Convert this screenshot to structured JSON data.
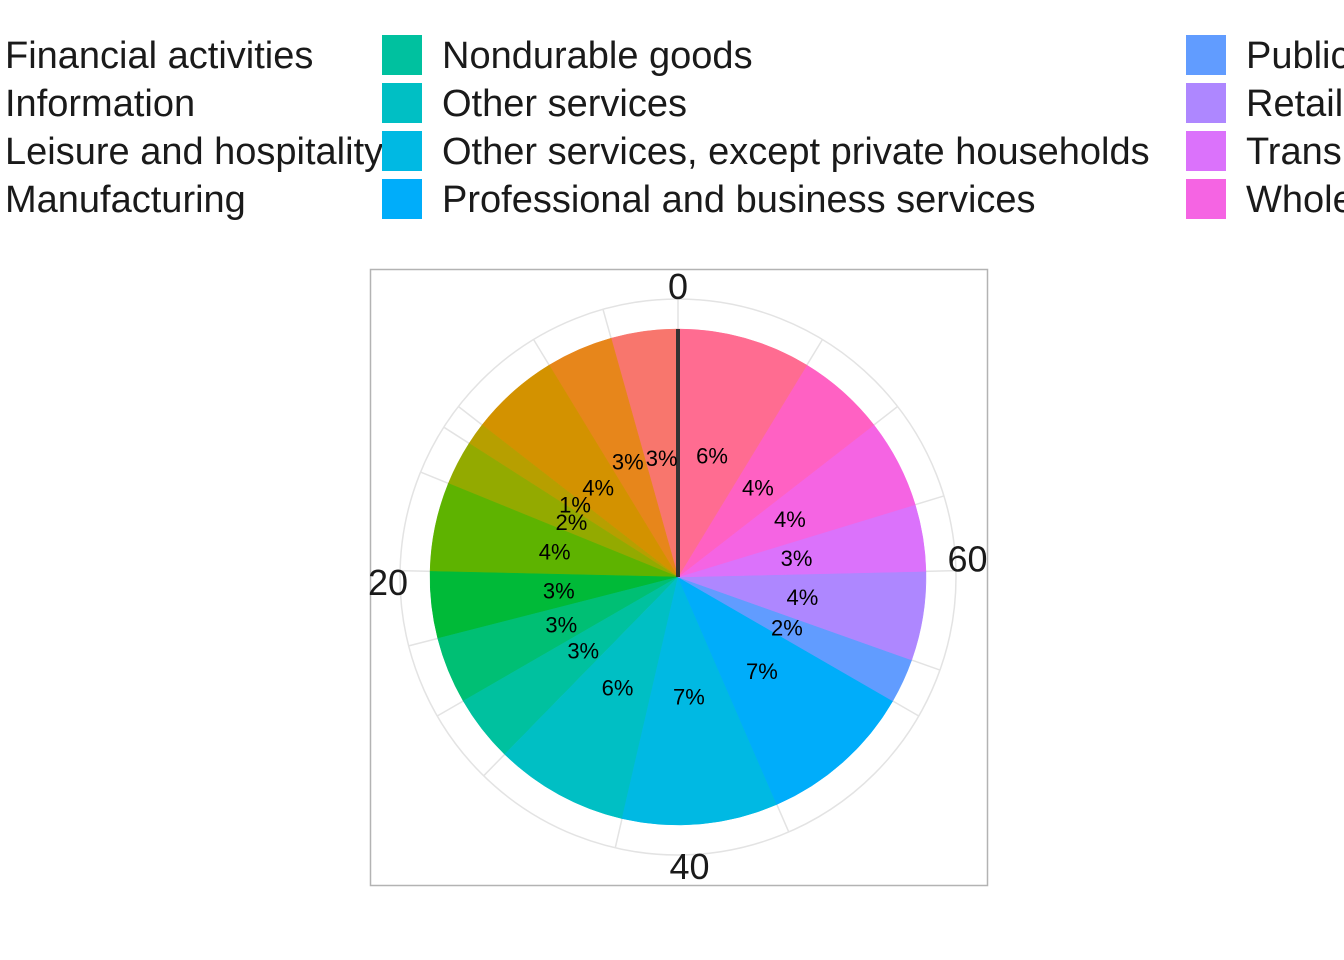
{
  "chart_data": {
    "type": "pie",
    "coord": "polar",
    "theta_axis_ticks": [
      "0",
      "20",
      "40",
      "60"
    ],
    "theta_axis_max": 79,
    "grid": true,
    "legend_position": "top",
    "slices": [
      {
        "name": "",
        "value": 3,
        "label": "3%",
        "color": "#F8766D"
      },
      {
        "name": "",
        "value": 3,
        "label": "3%",
        "color": "#E7861B"
      },
      {
        "name": "",
        "value": 4,
        "label": "4%",
        "color": "#D39200"
      },
      {
        "name": "",
        "value": 1,
        "label": "1%",
        "color": "#B79F00"
      },
      {
        "name": "",
        "value": 2,
        "label": "2%",
        "color": "#93AA00"
      },
      {
        "name": "",
        "value": 4,
        "label": "4%",
        "color": "#5EB300"
      },
      {
        "name": "",
        "value": 3,
        "label": "3%",
        "color": "#00BA38"
      },
      {
        "name": "",
        "value": 3,
        "label": "3%",
        "color": "#00BF74"
      },
      {
        "name": "",
        "value": 3,
        "label": "3%",
        "color": "#00C19F"
      },
      {
        "name": "",
        "value": 6,
        "label": "6%",
        "color": "#00BFC4"
      },
      {
        "name": "",
        "value": 7,
        "label": "7%",
        "color": "#00B9E3"
      },
      {
        "name": "",
        "value": 7,
        "label": "7%",
        "color": "#00ADFA"
      },
      {
        "name": "",
        "value": 2,
        "label": "2%",
        "color": "#619CFF"
      },
      {
        "name": "",
        "value": 4,
        "label": "4%",
        "color": "#AE87FF"
      },
      {
        "name": "",
        "value": 3,
        "label": "3%",
        "color": "#DB72FB"
      },
      {
        "name": "",
        "value": 4,
        "label": "4%",
        "color": "#F564E3"
      },
      {
        "name": "",
        "value": 4,
        "label": "4%",
        "color": "#FF61C3"
      },
      {
        "name": "",
        "value": 6,
        "label": "6%",
        "color": "#FF6C91"
      }
    ],
    "legend": [
      {
        "label": "Financial activities",
        "color": "#5EB300"
      },
      {
        "label": "Information",
        "color": "#00BA38"
      },
      {
        "label": "Leisure and hospitality",
        "color": "#00BF74"
      },
      {
        "label": "Manufacturing",
        "color": "#00C19F"
      },
      {
        "label": "Nondurable goods",
        "color": "#00C19F"
      },
      {
        "label": "Other services",
        "color": "#00BFC4"
      },
      {
        "label": "Other services, except private households",
        "color": "#00B9E3"
      },
      {
        "label": "Professional and business services",
        "color": "#00ADFA"
      },
      {
        "label": "Public administration",
        "color": "#619CFF"
      },
      {
        "label": "Retail trade",
        "color": "#AE87FF"
      },
      {
        "label": "Transportation and utilities",
        "color": "#DB72FB"
      },
      {
        "label": "Wholesale trade",
        "color": "#F564E3"
      }
    ]
  }
}
